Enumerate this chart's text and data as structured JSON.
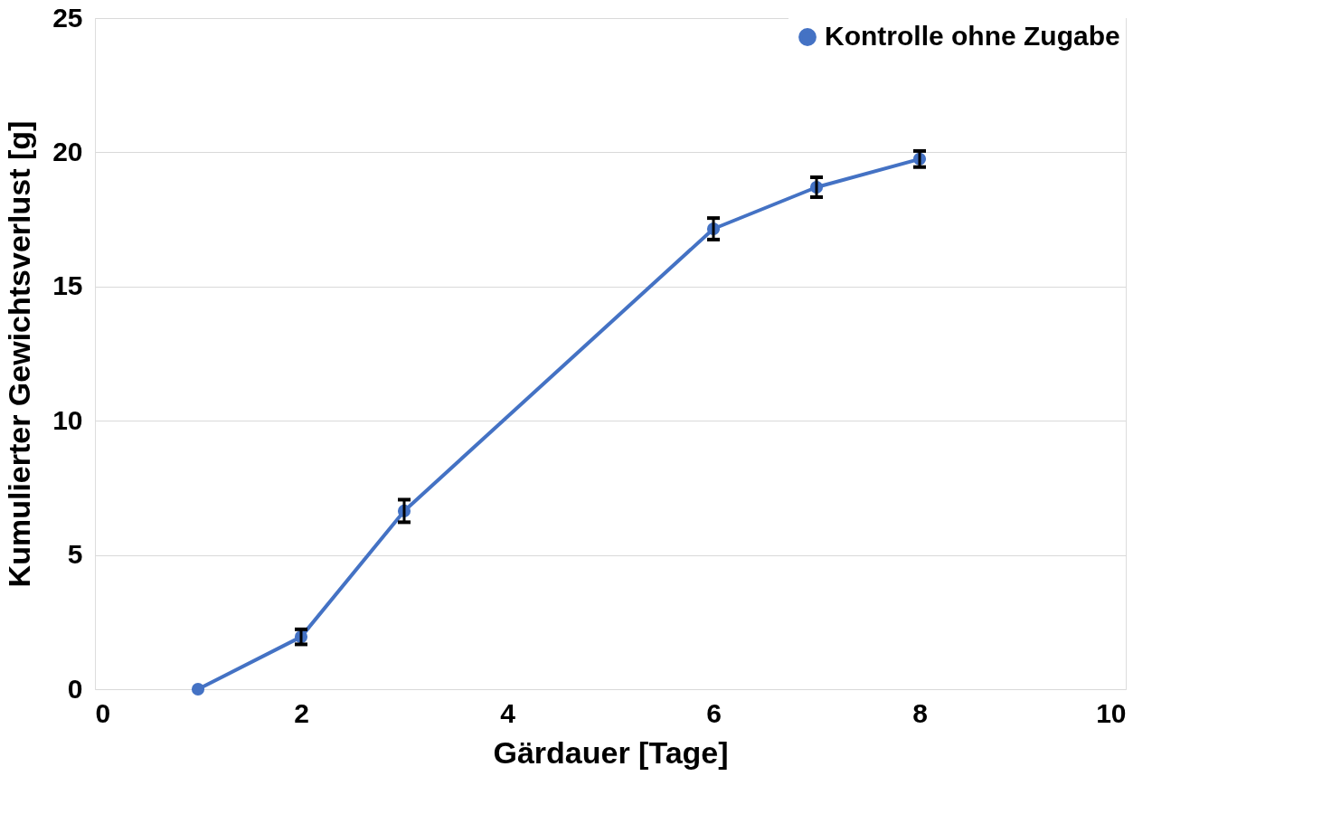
{
  "chart_data": {
    "type": "line",
    "xlabel": "Gärdauer [Tage]",
    "ylabel": "Kumulierter Gewichtsverlust [g]",
    "x": [
      1,
      2,
      3,
      6,
      7,
      8
    ],
    "series": [
      {
        "name": "Kontrolle ohne Zugabe",
        "color": "#4472c4",
        "values": [
          0,
          1.95,
          6.64,
          17.15,
          18.7,
          19.75
        ],
        "errors": [
          null,
          0.28,
          0.42,
          0.4,
          0.37,
          0.3
        ]
      }
    ],
    "xlim": [
      0,
      10
    ],
    "xticks": [
      0,
      2,
      4,
      6,
      8,
      10
    ],
    "ylim": [
      0,
      25
    ],
    "yticks": [
      0,
      5,
      10,
      15,
      20,
      25
    ],
    "grid": "y",
    "legend": "top right",
    "marker": "circle",
    "line_style": "solid"
  }
}
